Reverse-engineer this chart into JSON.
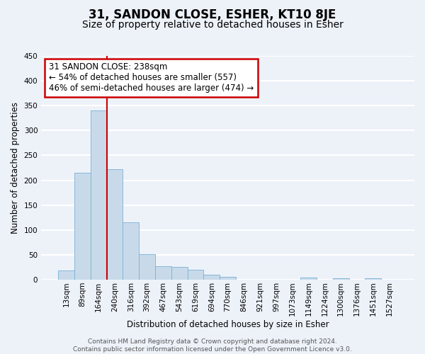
{
  "title": "31, SANDON CLOSE, ESHER, KT10 8JE",
  "subtitle": "Size of property relative to detached houses in Esher",
  "xlabel": "Distribution of detached houses by size in Esher",
  "ylabel": "Number of detached properties",
  "bar_labels": [
    "13sqm",
    "89sqm",
    "164sqm",
    "240sqm",
    "316sqm",
    "392sqm",
    "467sqm",
    "543sqm",
    "619sqm",
    "694sqm",
    "770sqm",
    "846sqm",
    "921sqm",
    "997sqm",
    "1073sqm",
    "1149sqm",
    "1224sqm",
    "1300sqm",
    "1376sqm",
    "1451sqm",
    "1527sqm"
  ],
  "bar_values": [
    18,
    215,
    340,
    222,
    115,
    51,
    27,
    26,
    20,
    10,
    6,
    0,
    0,
    0,
    0,
    4,
    0,
    3,
    0,
    3,
    0
  ],
  "bar_color": "#c8daea",
  "bar_edge_color": "#7ab0d4",
  "annotation_line_color": "#cc0000",
  "annotation_line_index": 3,
  "annotation_box_text": "31 SANDON CLOSE: 238sqm\n← 54% of detached houses are smaller (557)\n46% of semi-detached houses are larger (474) →",
  "annotation_box_color": "#ffffff",
  "annotation_box_edge_color": "#cc0000",
  "ylim": [
    0,
    450
  ],
  "yticks": [
    0,
    50,
    100,
    150,
    200,
    250,
    300,
    350,
    400,
    450
  ],
  "bg_color": "#edf2f9",
  "grid_color": "#ffffff",
  "footer_line1": "Contains HM Land Registry data © Crown copyright and database right 2024.",
  "footer_line2": "Contains public sector information licensed under the Open Government Licence v3.0.",
  "title_fontsize": 12,
  "subtitle_fontsize": 10,
  "axis_label_fontsize": 8.5,
  "tick_fontsize": 7.5,
  "annotation_fontsize": 8.5,
  "footer_fontsize": 6.5
}
